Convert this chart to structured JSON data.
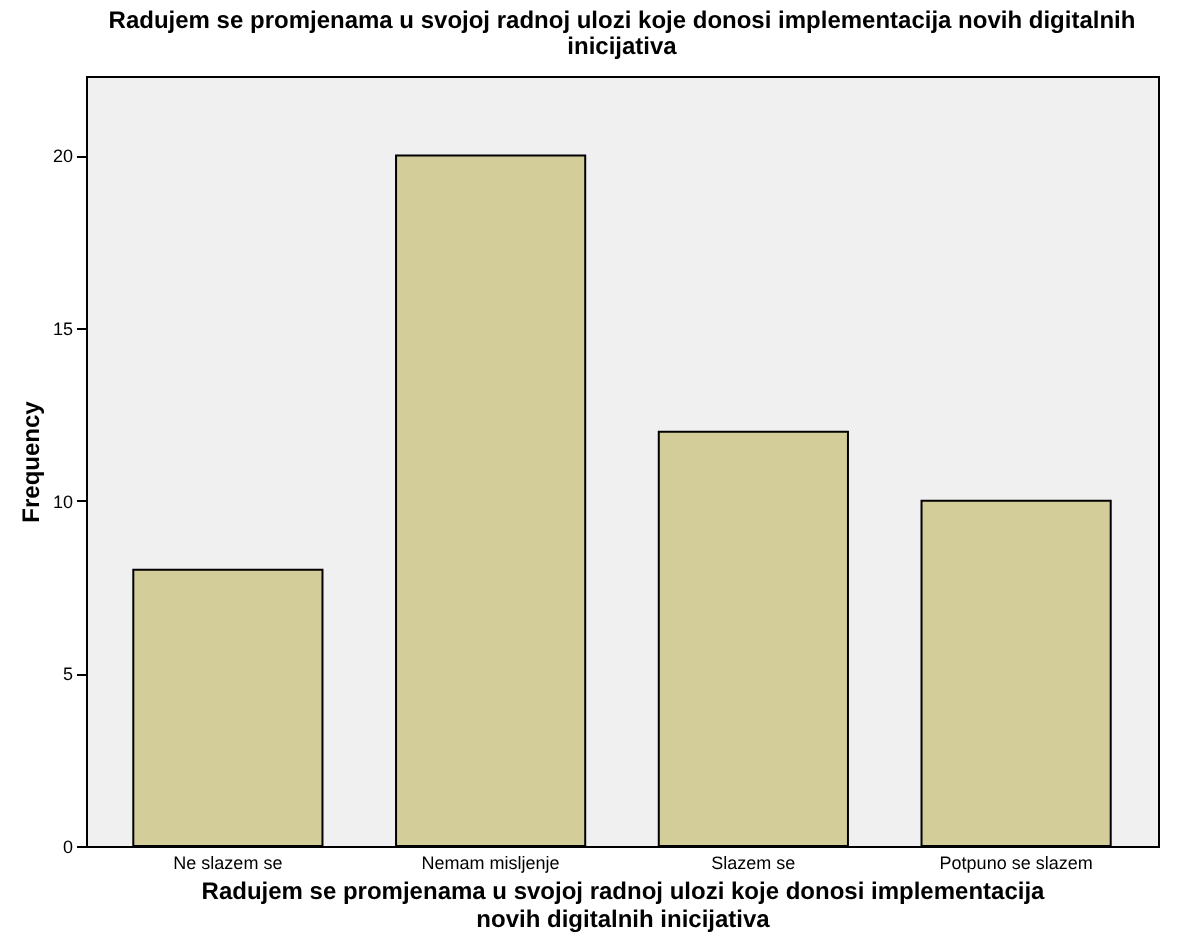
{
  "chart_data": {
    "type": "bar",
    "title": "Radujem se promjenama u svojoj radnoj ulozi koje donosi implementacija novih digitalnih inicijativa",
    "xlabel": "Radujem se promjenama u svojoj radnoj ulozi koje donosi implementacija novih digitalnih inicijativa",
    "ylabel": "Frequency",
    "categories": [
      "Ne slazem se",
      "Nemam misljenje",
      "Slazem se",
      "Potpuno se slazem"
    ],
    "values": [
      8,
      20,
      12,
      10
    ],
    "color": "#d3ce99",
    "ylim": [
      0,
      22.3
    ],
    "yticks": [
      0,
      5,
      10,
      15,
      20
    ],
    "grid": false
  }
}
